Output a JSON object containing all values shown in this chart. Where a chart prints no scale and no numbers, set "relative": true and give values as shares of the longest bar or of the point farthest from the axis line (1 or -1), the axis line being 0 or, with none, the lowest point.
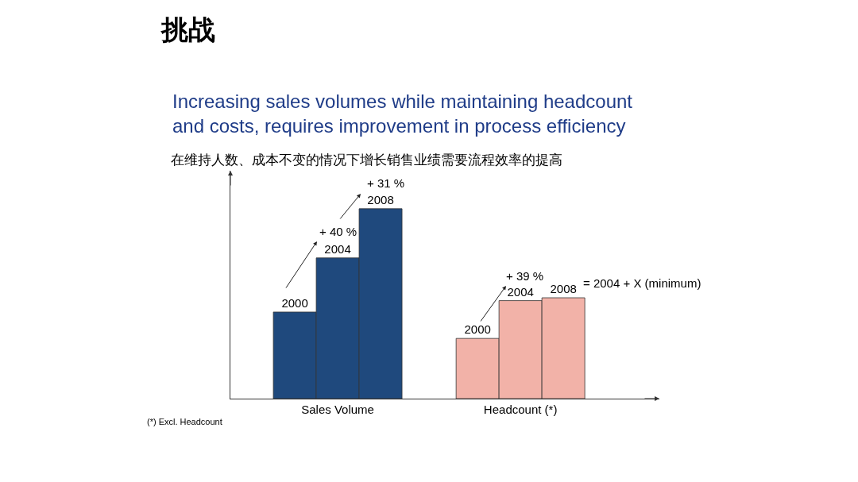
{
  "chart_data": {
    "type": "bar",
    "title": "挑战",
    "subtitle": "Increasing sales volumes while maintaining headcount\nand costs, requires improvement in process efficiency",
    "categories": [
      "Sales Volume",
      "Headcount (*)"
    ],
    "relative": true,
    "series": [
      {
        "name": "2000",
        "colors": [
          "#1f497d",
          "#f2b2a8"
        ],
        "values": [
          0.456,
          0.317
        ]
      },
      {
        "name": "2004",
        "colors": [
          "#1f497d",
          "#f2b2a8"
        ],
        "values": [
          0.741,
          0.516
        ]
      },
      {
        "name": "2008",
        "colors": [
          "#1f497d",
          "#f2b2a8"
        ],
        "values": [
          1,
          0.531
        ]
      }
    ],
    "annotations": [
      "+ 40 %",
      "+ 31 %",
      "+ 39 %",
      "= 2004 + X (minimum)",
      "在维持人数、成本不变的情况下增长销售业绩需要流程效率的提高",
      "(*) Excl. Headcount"
    ],
    "legend": false
  }
}
